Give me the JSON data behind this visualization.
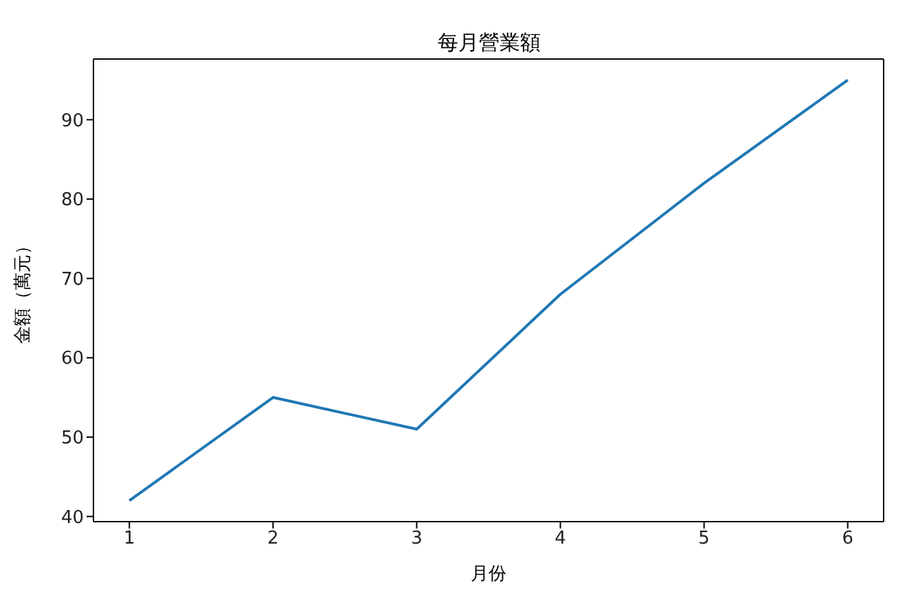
{
  "chart_data": {
    "type": "line",
    "title": "每月營業額",
    "xlabel": "月份",
    "ylabel": "金額（萬元）",
    "x": [
      1,
      2,
      3,
      4,
      5,
      6
    ],
    "series": [
      {
        "color": "#1f77b4",
        "values": [
          42,
          55,
          51,
          68,
          82,
          95
        ]
      }
    ],
    "xlim": [
      0.75,
      6.25
    ],
    "xticks": [
      1,
      2,
      3,
      4,
      5,
      6
    ],
    "ylim": [
      39.35,
      97.65
    ],
    "yticks": [
      40,
      50,
      60,
      70,
      80,
      90
    ]
  }
}
